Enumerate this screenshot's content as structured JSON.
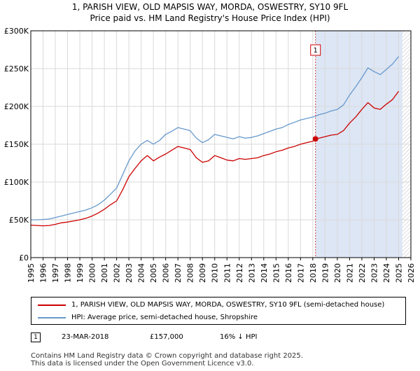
{
  "title": {
    "line1": "1, PARISH VIEW, OLD MAPSIS WAY, MORDA, OSWESTRY, SY10 9FL",
    "line2": "Price paid vs. HM Land Registry's House Price Index (HPI)"
  },
  "colors": {
    "price_paid": "#cc0000",
    "hpi": "#6699cc",
    "shade": "#dde6f5",
    "grid": "#d9d9d9",
    "vline": "#cc4444"
  },
  "chart_data": {
    "type": "line",
    "title": "Price paid vs. HM Land Registry's House Price Index (HPI)",
    "xlabel": "",
    "ylabel": "",
    "xlim": [
      1995,
      2026
    ],
    "ylim": [
      0,
      300000
    ],
    "y_ticks": [
      0,
      50000,
      100000,
      150000,
      200000,
      250000,
      300000
    ],
    "y_tick_labels": [
      "£0",
      "£50K",
      "£100K",
      "£150K",
      "£200K",
      "£250K",
      "£300K"
    ],
    "x_ticks": [
      1995,
      1996,
      1997,
      1998,
      1999,
      2000,
      2001,
      2002,
      2003,
      2004,
      2005,
      2006,
      2007,
      2008,
      2009,
      2010,
      2011,
      2012,
      2013,
      2014,
      2015,
      2016,
      2017,
      2018,
      2019,
      2020,
      2021,
      2022,
      2023,
      2024,
      2025,
      2026
    ],
    "grid": true,
    "shaded_regions": [
      [
        2018.22,
        2025.3
      ]
    ],
    "hatched_regions": [
      [
        2025.3,
        2026
      ]
    ],
    "series": [
      {
        "name": "1, PARISH VIEW, OLD MAPSIS WAY, MORDA, OSWESTRY, SY10 9FL (semi-detached house)",
        "color": "#cc0000",
        "x": [
          1995.0,
          1995.5,
          1996.0,
          1996.5,
          1997.0,
          1997.5,
          1998.0,
          1998.5,
          1999.0,
          1999.5,
          2000.0,
          2000.5,
          2001.0,
          2001.5,
          2002.0,
          2002.5,
          2003.0,
          2003.5,
          2004.0,
          2004.5,
          2005.0,
          2005.5,
          2006.0,
          2006.5,
          2007.0,
          2007.5,
          2008.0,
          2008.5,
          2009.0,
          2009.5,
          2010.0,
          2010.5,
          2011.0,
          2011.5,
          2012.0,
          2012.5,
          2013.0,
          2013.5,
          2014.0,
          2014.5,
          2015.0,
          2015.5,
          2016.0,
          2016.5,
          2017.0,
          2017.5,
          2018.0,
          2018.22,
          2018.5,
          2019.0,
          2019.5,
          2020.0,
          2020.5,
          2021.0,
          2021.5,
          2022.0,
          2022.5,
          2023.0,
          2023.5,
          2024.0,
          2024.5,
          2025.0
        ],
        "values": [
          43000,
          42500,
          42000,
          42500,
          44000,
          46000,
          47000,
          48500,
          50000,
          52000,
          55000,
          59000,
          64000,
          70000,
          75000,
          90000,
          107000,
          118000,
          128000,
          135000,
          128000,
          133000,
          137000,
          142000,
          147000,
          145000,
          143000,
          132000,
          126000,
          128000,
          135000,
          132000,
          129000,
          128000,
          131000,
          130000,
          131000,
          132000,
          135000,
          137000,
          140000,
          142000,
          145000,
          147000,
          150000,
          152000,
          154000,
          157000,
          158000,
          160000,
          162000,
          163000,
          168000,
          178000,
          186000,
          196000,
          205000,
          198000,
          196000,
          203000,
          209000,
          220000
        ]
      },
      {
        "name": "HPI: Average price, semi-detached house, Shropshire",
        "color": "#6699cc",
        "x": [
          1995.0,
          1995.5,
          1996.0,
          1996.5,
          1997.0,
          1997.5,
          1998.0,
          1998.5,
          1999.0,
          1999.5,
          2000.0,
          2000.5,
          2001.0,
          2001.5,
          2002.0,
          2002.5,
          2003.0,
          2003.5,
          2004.0,
          2004.5,
          2005.0,
          2005.5,
          2006.0,
          2006.5,
          2007.0,
          2007.5,
          2008.0,
          2008.5,
          2009.0,
          2009.5,
          2010.0,
          2010.5,
          2011.0,
          2011.5,
          2012.0,
          2012.5,
          2013.0,
          2013.5,
          2014.0,
          2014.5,
          2015.0,
          2015.5,
          2016.0,
          2016.5,
          2017.0,
          2017.5,
          2018.0,
          2018.22,
          2018.5,
          2019.0,
          2019.5,
          2020.0,
          2020.5,
          2021.0,
          2021.5,
          2022.0,
          2022.5,
          2023.0,
          2023.5,
          2024.0,
          2024.5,
          2025.0
        ],
        "values": [
          50000,
          50000,
          50500,
          51000,
          53000,
          55000,
          57000,
          59000,
          61000,
          63000,
          66000,
          70000,
          76000,
          84000,
          92000,
          110000,
          128000,
          141000,
          150000,
          155000,
          150000,
          155000,
          163000,
          167000,
          172000,
          170000,
          168000,
          158000,
          152000,
          156000,
          163000,
          161000,
          159000,
          157000,
          160000,
          158000,
          159000,
          161000,
          164000,
          167000,
          170000,
          172000,
          176000,
          179000,
          182000,
          184000,
          186000,
          187000,
          189000,
          191000,
          194000,
          196000,
          202000,
          215000,
          226000,
          238000,
          251000,
          246000,
          242000,
          249000,
          256000,
          266000
        ]
      }
    ],
    "annotations": [
      {
        "label": "1",
        "x": 2018.22,
        "value": 157000
      }
    ]
  },
  "legend": {
    "items": [
      {
        "label": "1, PARISH VIEW, OLD MAPSIS WAY, MORDA, OSWESTRY, SY10 9FL (semi-detached house)"
      },
      {
        "label": "HPI: Average price, semi-detached house, Shropshire"
      }
    ]
  },
  "transactions": [
    {
      "num": "1",
      "date": "23-MAR-2018",
      "price": "£157,000",
      "hpi_diff": "16% ↓ HPI"
    }
  ],
  "footer": {
    "line1": "Contains HM Land Registry data © Crown copyright and database right 2025.",
    "line2": "This data is licensed under the Open Government Licence v3.0."
  }
}
